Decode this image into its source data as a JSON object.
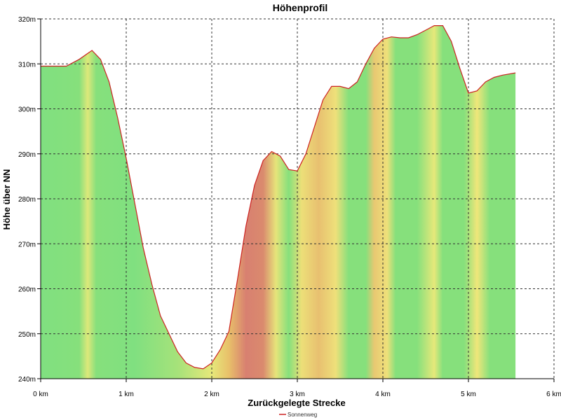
{
  "chart_data": {
    "type": "area",
    "title": "Höhenprofil",
    "xlabel": "Zurückgelegte Strecke",
    "ylabel": "Höhe über NN",
    "xlim": [
      0,
      6
    ],
    "ylim": [
      240,
      320
    ],
    "x_ticks": [
      {
        "value": 0,
        "label": "0 km"
      },
      {
        "value": 1,
        "label": "1 km"
      },
      {
        "value": 2,
        "label": "2 km"
      },
      {
        "value": 3,
        "label": "3 km"
      },
      {
        "value": 4,
        "label": "4 km"
      },
      {
        "value": 5,
        "label": "5 km"
      },
      {
        "value": 6,
        "label": "6 km"
      }
    ],
    "y_ticks": [
      {
        "value": 240,
        "label": "240m"
      },
      {
        "value": 250,
        "label": "250m"
      },
      {
        "value": 260,
        "label": "260m"
      },
      {
        "value": 270,
        "label": "270m"
      },
      {
        "value": 280,
        "label": "280m"
      },
      {
        "value": 290,
        "label": "290m"
      },
      {
        "value": 300,
        "label": "300m"
      },
      {
        "value": 310,
        "label": "310m"
      },
      {
        "value": 320,
        "label": "320m"
      }
    ],
    "grid": true,
    "legend_position": "bottom-center",
    "series": [
      {
        "name": "Sonnenweg",
        "color": "#cc2222",
        "x": [
          0.0,
          0.15,
          0.3,
          0.45,
          0.6,
          0.7,
          0.8,
          0.9,
          1.0,
          1.1,
          1.2,
          1.3,
          1.4,
          1.5,
          1.6,
          1.7,
          1.8,
          1.9,
          2.0,
          2.1,
          2.2,
          2.3,
          2.4,
          2.5,
          2.6,
          2.7,
          2.8,
          2.9,
          3.0,
          3.1,
          3.2,
          3.3,
          3.4,
          3.5,
          3.6,
          3.7,
          3.8,
          3.9,
          4.0,
          4.1,
          4.2,
          4.3,
          4.4,
          4.5,
          4.6,
          4.7,
          4.8,
          4.9,
          5.0,
          5.1,
          5.2,
          5.3,
          5.4,
          5.55
        ],
        "y": [
          309.5,
          309.5,
          309.5,
          311,
          313,
          311,
          306,
          298,
          289,
          279,
          269,
          261,
          254,
          250,
          246,
          243.5,
          242.5,
          242.2,
          243.5,
          246.5,
          250.5,
          262,
          274,
          283,
          288.5,
          290.5,
          289.5,
          286.5,
          286.2,
          290,
          296,
          302,
          305,
          305,
          304.5,
          306,
          310,
          313.5,
          315.5,
          316,
          315.8,
          315.8,
          316.5,
          317.5,
          318.5,
          318.5,
          315,
          309,
          303.5,
          304,
          306,
          307,
          307.5,
          308
        ]
      }
    ],
    "background_stops": [
      {
        "x": 0.0,
        "color": "#80e080"
      },
      {
        "x": 0.45,
        "color": "#86e07c"
      },
      {
        "x": 0.55,
        "color": "#dde87a"
      },
      {
        "x": 0.65,
        "color": "#86e07c"
      },
      {
        "x": 1.1,
        "color": "#80e080"
      },
      {
        "x": 1.6,
        "color": "#a6e27a"
      },
      {
        "x": 2.0,
        "color": "#e6e87a"
      },
      {
        "x": 2.2,
        "color": "#e8c06a"
      },
      {
        "x": 2.4,
        "color": "#d88070"
      },
      {
        "x": 2.6,
        "color": "#da8a6e"
      },
      {
        "x": 2.75,
        "color": "#e6e47a"
      },
      {
        "x": 2.9,
        "color": "#86e07c"
      },
      {
        "x": 3.05,
        "color": "#ecdf78"
      },
      {
        "x": 3.25,
        "color": "#e8c070"
      },
      {
        "x": 3.45,
        "color": "#eee07a"
      },
      {
        "x": 3.6,
        "color": "#86e07c"
      },
      {
        "x": 3.8,
        "color": "#86e07c"
      },
      {
        "x": 3.9,
        "color": "#e8c872"
      },
      {
        "x": 4.05,
        "color": "#eee07a"
      },
      {
        "x": 4.15,
        "color": "#86e07c"
      },
      {
        "x": 4.4,
        "color": "#86e07c"
      },
      {
        "x": 4.6,
        "color": "#e6e87a"
      },
      {
        "x": 4.7,
        "color": "#86e07c"
      },
      {
        "x": 4.95,
        "color": "#86e07c"
      },
      {
        "x": 5.1,
        "color": "#f0e67a"
      },
      {
        "x": 5.25,
        "color": "#86e07c"
      },
      {
        "x": 5.55,
        "color": "#86e07c"
      }
    ]
  }
}
